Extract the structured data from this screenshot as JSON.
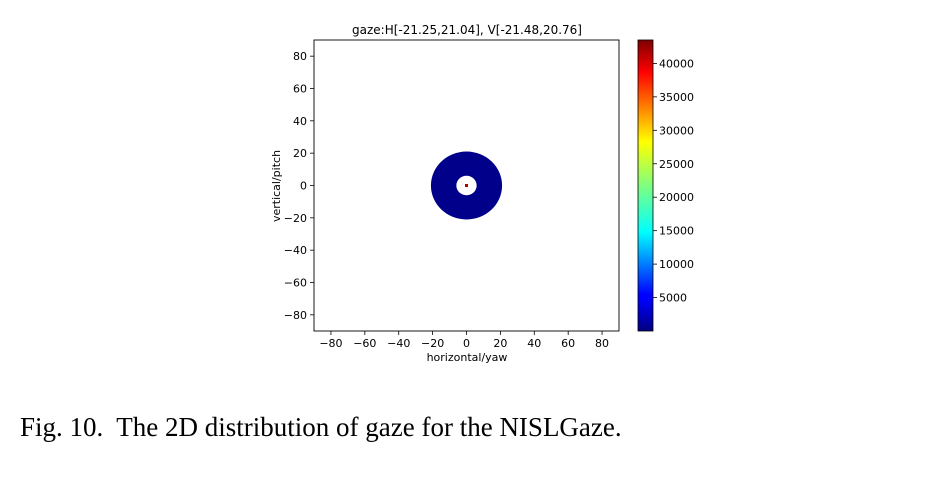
{
  "caption": {
    "prefix": "Fig. 10.",
    "text": "The 2D distribution of gaze for the NISLGaze."
  },
  "chart_data": {
    "type": "heatmap",
    "title": "gaze:H[-21.25,21.04], V[-21.48,20.76]",
    "xlabel": "horizontal/yaw",
    "ylabel": "vertical/pitch",
    "xlim": [
      -90,
      90
    ],
    "ylim": [
      -90,
      90
    ],
    "xticks": [
      -80,
      -60,
      -40,
      -20,
      0,
      20,
      40,
      60,
      80
    ],
    "yticks": [
      -80,
      -60,
      -40,
      -20,
      0,
      20,
      40,
      60,
      80
    ],
    "xtick_labels": [
      "−80",
      "−60",
      "−40",
      "−20",
      "0",
      "20",
      "40",
      "60",
      "80"
    ],
    "ytick_labels": [
      "−80",
      "−60",
      "−40",
      "−20",
      "0",
      "20",
      "40",
      "60",
      "80"
    ],
    "grid": false,
    "colormap": "jet",
    "colorbar": {
      "range": [
        1,
        43500
      ],
      "ticks": [
        5000,
        10000,
        15000,
        20000,
        25000,
        30000,
        35000,
        40000
      ]
    },
    "regions": [
      {
        "shape": "ring",
        "center": [
          0,
          0
        ],
        "inner_radius": 6,
        "outer_radius": 21,
        "value": 800,
        "color": "#00008b"
      },
      {
        "shape": "point",
        "center": [
          0,
          0
        ],
        "value": 43500,
        "color": "#b20000"
      }
    ]
  }
}
